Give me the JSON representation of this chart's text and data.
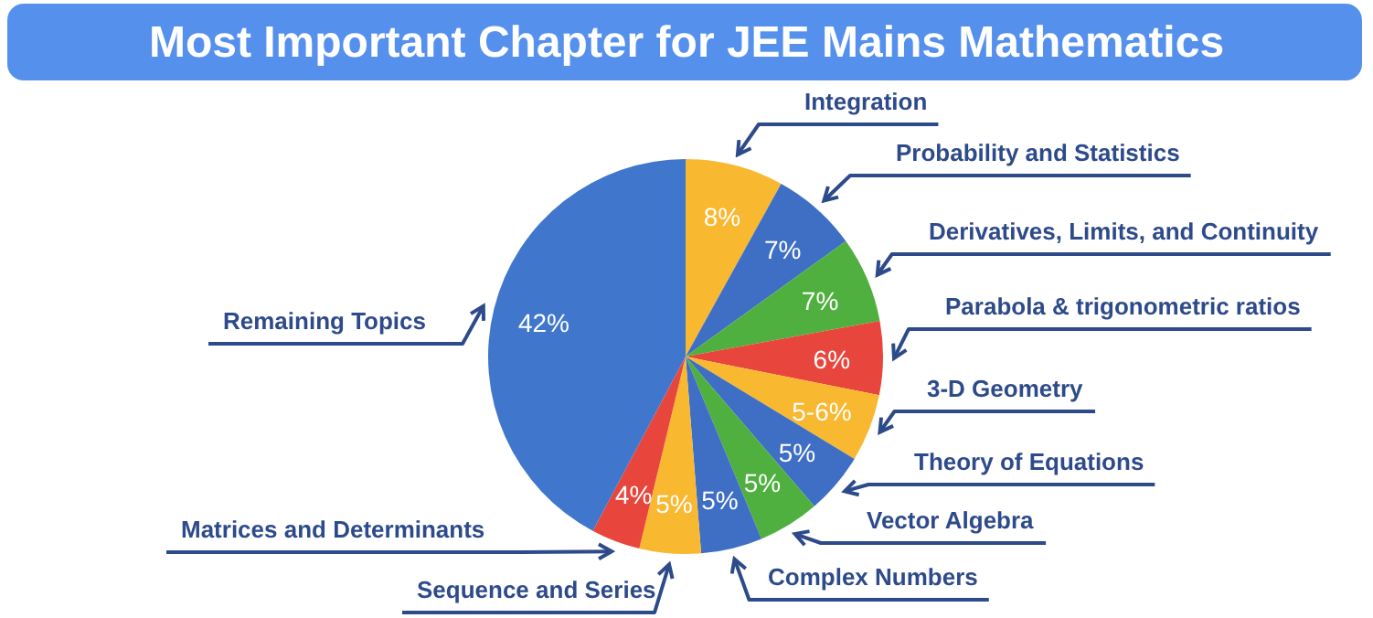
{
  "chart_data": {
    "type": "pie",
    "title": "Most Important Chapter for JEE Mains Mathematics",
    "categories": [
      "Integration",
      "Probability and Statistics",
      "Derivatives, Limits, and Continuity",
      "Parabola & trigonometric ratios",
      "3-D Geometry",
      "Theory of Equations",
      "Vector Algebra",
      "Complex Numbers",
      "Sequence and Series",
      "Matrices and Determinants",
      "Remaining Topics"
    ],
    "values": [
      8,
      7,
      7,
      6,
      5.5,
      5,
      5,
      5,
      5,
      4,
      42
    ],
    "value_labels": [
      "8%",
      "7%",
      "7%",
      "6%",
      "5-6%",
      "5%",
      "5%",
      "5%",
      "5%",
      "4%",
      "42%"
    ],
    "colors": [
      "#f8b830",
      "#3f6fc4",
      "#4fb03f",
      "#e8463c",
      "#f8b830",
      "#3f6fc4",
      "#4fb03f",
      "#3f6fc4",
      "#f8b830",
      "#e8463c",
      "#4076cc"
    ]
  }
}
